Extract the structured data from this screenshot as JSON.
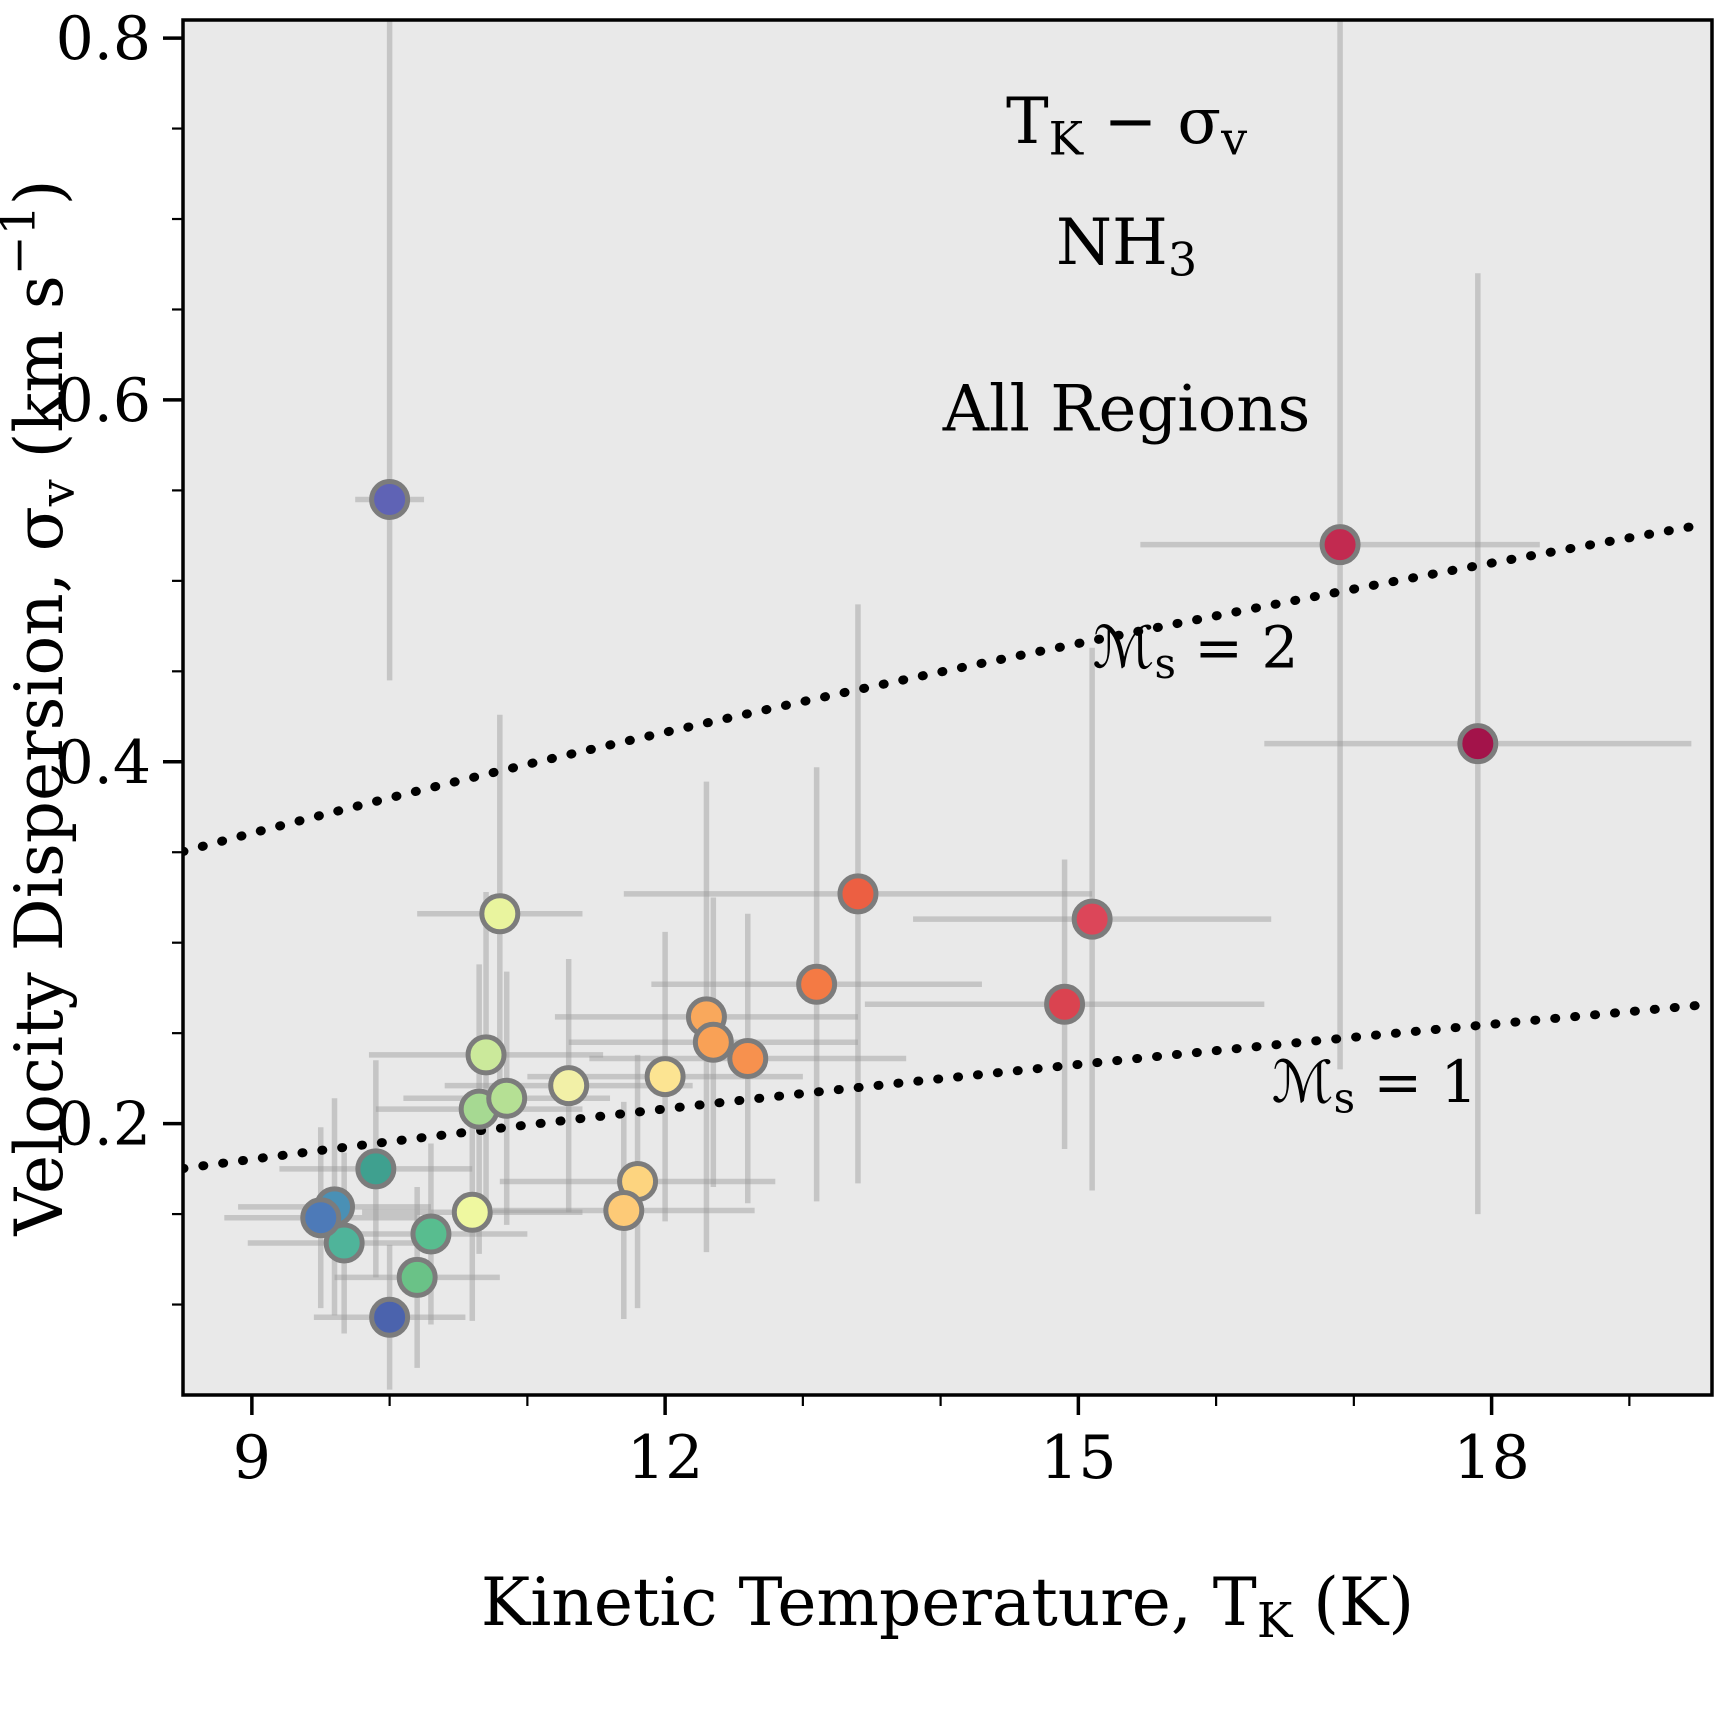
{
  "chart_data": {
    "type": "scatter",
    "title": "Kinetic temperature versus velocity dispersion for NH3 cores, all regions",
    "annotations": [
      {
        "text": "T_{K} − σ_{v}",
        "T": 15.35,
        "sigma": 0.742
      },
      {
        "text": "NH_{3}",
        "T": 15.35,
        "sigma": 0.675
      },
      {
        "text": "All Regions",
        "T": 15.35,
        "sigma": 0.583
      }
    ],
    "xlabel": "Kinetic Temperature, T_{K} (K)",
    "ylabel": "Velocity Dispersion, σ_{v} (km s^{−1})",
    "xlim": [
      8.5,
      19.6
    ],
    "ylim": [
      0.05,
      0.81
    ],
    "xticks": [
      9,
      12,
      15,
      18
    ],
    "yticks": [
      0.2,
      0.4,
      0.6,
      0.8
    ],
    "x_minor_step": 1.0,
    "y_minor_step": 0.05,
    "grid": false,
    "legend": "none",
    "cs_10K": 0.19,
    "mach_lines": [
      {
        "mach": 2,
        "label": "ℳ_{s} = 2",
        "label_T": 15.85,
        "label_sigma": 0.452
      },
      {
        "mach": 1,
        "label": "ℳ_{s} = 1",
        "label_T": 17.15,
        "label_sigma": 0.212
      }
    ],
    "colors": {
      "plot_bg": "#e9e9e9",
      "errorbar": "#999999",
      "marker_edge": "#7c7c7c",
      "mach_line": "#000000",
      "axis": "#000000"
    },
    "points": [
      {
        "T": 10.0,
        "sigma": 0.545,
        "xerr": 0.25,
        "yerr_hi": 0.27,
        "yerr_lo": 0.1,
        "yerr": 0.18,
        "color": "#5f63b5"
      },
      {
        "T": 16.9,
        "sigma": 0.52,
        "xerr": 1.45,
        "yerr": 0.29,
        "color": "#c22a50"
      },
      {
        "T": 17.9,
        "sigma": 0.41,
        "xerr": 1.55,
        "yerr": 0.26,
        "color": "#a3134a"
      },
      {
        "T": 13.4,
        "sigma": 0.327,
        "xerr": 1.7,
        "yerr": 0.16,
        "color": "#ec5f42"
      },
      {
        "T": 15.1,
        "sigma": 0.313,
        "xerr": 1.3,
        "yerr": 0.15,
        "color": "#dc4659"
      },
      {
        "T": 13.1,
        "sigma": 0.277,
        "xerr": 1.2,
        "yerr": 0.12,
        "color": "#f47a44"
      },
      {
        "T": 14.9,
        "sigma": 0.266,
        "xerr": 1.45,
        "yerr": 0.08,
        "color": "#da4350"
      },
      {
        "T": 12.3,
        "sigma": 0.259,
        "xerr": 1.1,
        "yerr": 0.13,
        "color": "#f9a85c"
      },
      {
        "T": 12.35,
        "sigma": 0.245,
        "xerr": 1.05,
        "yerr": 0.08,
        "color": "#f9a156"
      },
      {
        "T": 12.6,
        "sigma": 0.236,
        "xerr": 1.15,
        "yerr": 0.08,
        "color": "#f7914e"
      },
      {
        "T": 10.8,
        "sigma": 0.316,
        "xerr": 0.6,
        "yerr": 0.11,
        "color": "#e9f49e"
      },
      {
        "T": 10.7,
        "sigma": 0.238,
        "xerr": 0.85,
        "yerr": 0.09,
        "color": "#cbe99b"
      },
      {
        "T": 10.65,
        "sigma": 0.208,
        "xerr": 0.75,
        "yerr": 0.08,
        "color": "#a6d992"
      },
      {
        "T": 10.85,
        "sigma": 0.214,
        "xerr": 0.75,
        "yerr": 0.07,
        "color": "#b5e094"
      },
      {
        "T": 11.3,
        "sigma": 0.221,
        "xerr": 0.9,
        "yerr": 0.07,
        "color": "#f2f0a7"
      },
      {
        "T": 12.0,
        "sigma": 0.226,
        "xerr": 1.0,
        "yerr": 0.08,
        "color": "#fce492"
      },
      {
        "T": 11.8,
        "sigma": 0.168,
        "xerr": 1.0,
        "yerr": 0.07,
        "color": "#fdd47f"
      },
      {
        "T": 11.7,
        "sigma": 0.152,
        "xerr": 0.95,
        "yerr": 0.06,
        "color": "#fdca77"
      },
      {
        "T": 10.6,
        "sigma": 0.151,
        "xerr": 0.8,
        "yerr": 0.06,
        "color": "#eff8a0"
      },
      {
        "T": 9.9,
        "sigma": 0.175,
        "xerr": 0.7,
        "yerr": 0.06,
        "color": "#3fa08f"
      },
      {
        "T": 10.3,
        "sigma": 0.139,
        "xerr": 0.7,
        "yerr": 0.05,
        "color": "#58bd8f"
      },
      {
        "T": 9.6,
        "sigma": 0.154,
        "xerr": 0.7,
        "yerr": 0.06,
        "color": "#4a90b5"
      },
      {
        "T": 9.67,
        "sigma": 0.134,
        "xerr": 0.7,
        "yerr": 0.05,
        "color": "#4fb49a"
      },
      {
        "T": 9.5,
        "sigma": 0.148,
        "xerr": 0.7,
        "yerr": 0.05,
        "color": "#4d7ab8"
      },
      {
        "T": 10.2,
        "sigma": 0.115,
        "xerr": 0.6,
        "yerr": 0.05,
        "color": "#6ac287"
      },
      {
        "T": 10.0,
        "sigma": 0.093,
        "xerr": 0.55,
        "yerr": 0.04,
        "color": "#4b63ad"
      }
    ]
  }
}
